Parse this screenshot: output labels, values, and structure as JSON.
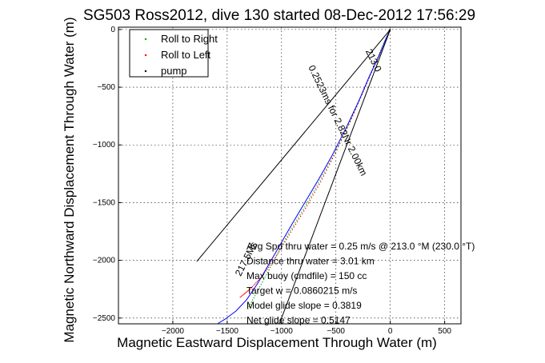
{
  "chart_data": {
    "type": "line",
    "title": "SG503 Ross2012, dive 130 started 08-Dec-2012 17:56:29",
    "xlabel": "Magnetic Eastward Displacement Through Water (m)",
    "ylabel": "Magnetic Northward Displacement Through Water (m)",
    "xlim": [
      -2500,
      650
    ],
    "ylim": [
      -2550,
      20
    ],
    "xticks": [
      -2000,
      -1500,
      -1000,
      -500,
      0,
      500
    ],
    "yticks": [
      0,
      -500,
      -1000,
      -1500,
      -2000,
      -2500
    ],
    "grid": true,
    "legend_position": "top-left",
    "series": [
      {
        "name": "Roll to Right",
        "color": "#00b000",
        "style": "dots",
        "x": [
          0,
          -60,
          -150,
          -260,
          -380,
          -520,
          -660,
          -800,
          -950,
          -1080,
          -1200,
          -1310
        ],
        "y": [
          0,
          -120,
          -320,
          -560,
          -820,
          -1090,
          -1330,
          -1560,
          -1790,
          -2020,
          -2230,
          -2420
        ]
      },
      {
        "name": "Roll to Left",
        "color": "#ff0000",
        "style": "dots",
        "x": [
          0,
          -50,
          -140,
          -250,
          -370,
          -505,
          -640,
          -780,
          -930,
          -1060,
          -1180,
          -1290,
          -1380
        ],
        "y": [
          0,
          -110,
          -300,
          -540,
          -800,
          -1070,
          -1320,
          -1550,
          -1780,
          -1980,
          -2140,
          -2250,
          -2320
        ]
      },
      {
        "name": "pump",
        "color": "#000000",
        "style": "dots",
        "x": [
          -5,
          -10
        ],
        "y": [
          -5,
          -12
        ]
      },
      {
        "name": "",
        "color": "#0000ff",
        "style": "line",
        "x": [
          0,
          -40,
          -100,
          -190,
          -290,
          -410,
          -540,
          -660,
          -780,
          -900,
          -1010,
          -1120,
          -1220,
          -1320,
          -1420,
          -1520,
          -1590
        ],
        "y": [
          0,
          -80,
          -220,
          -400,
          -620,
          -860,
          -1100,
          -1300,
          -1490,
          -1680,
          -1860,
          -2040,
          -2200,
          -2340,
          -2440,
          -2510,
          -2560
        ]
      },
      {
        "name": "",
        "color": "#000000",
        "style": "line",
        "x": [
          0,
          -1780
        ],
        "y": [
          0,
          -2010
        ]
      },
      {
        "name": "",
        "color": "#000000",
        "style": "line",
        "x": [
          0,
          -1020
        ],
        "y": [
          0,
          -2560
        ]
      }
    ],
    "annotations": [
      {
        "text": "213.0",
        "x": -180,
        "y": -280,
        "angle": 64
      },
      {
        "text": "0.2523ms for 2.82Nr 2.00km",
        "x": -510,
        "y": -800,
        "angle": 64
      },
      {
        "text": "217.5Ms",
        "x": -1300,
        "y": -2000,
        "angle": -63
      }
    ],
    "stats": [
      "Avg Spd thru water =  0.25 m/s @ 213.0    °M (230.0 °T)",
      "Distance thru water =  3.01 km",
      "Max buoy (cmdfile) = 150 cc",
      "Target w = 0.0860215 m/s",
      "Model glide slope = 0.3819",
      "Net glide slope = 0.5147"
    ]
  }
}
